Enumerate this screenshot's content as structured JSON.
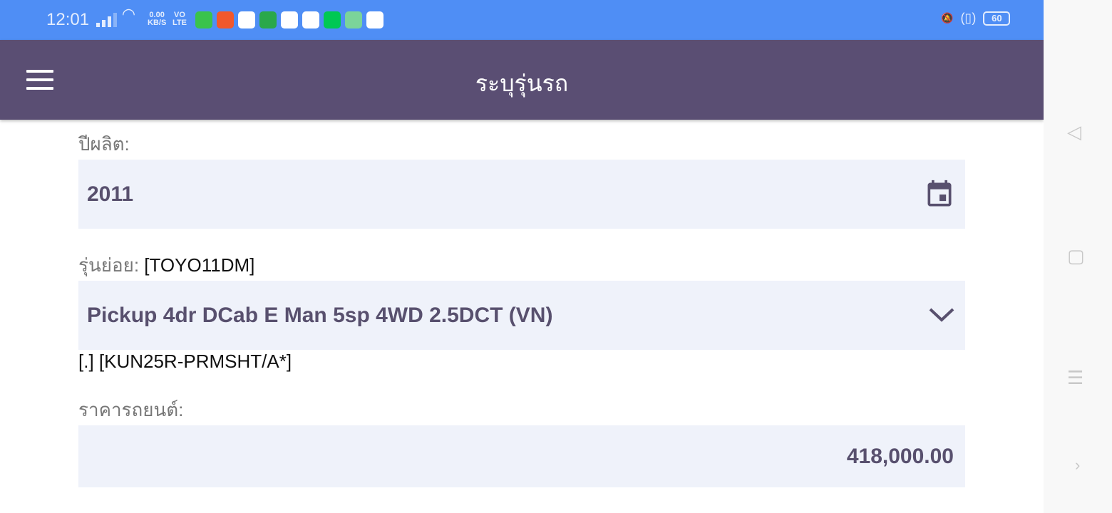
{
  "status_bar": {
    "time": "12:01",
    "net_speed": "0.00",
    "net_unit": "KB/S",
    "volte_top": "VO",
    "volte_bottom": "LTE",
    "battery": "60",
    "app_icons": [
      {
        "name": "line",
        "color": "#3ac34c"
      },
      {
        "name": "shopee",
        "color": "#f1582c"
      },
      {
        "name": "browser",
        "color": "#ffffff"
      },
      {
        "name": "store",
        "color": "#2aa84a"
      },
      {
        "name": "photos",
        "color": "#ffffff"
      },
      {
        "name": "chrome",
        "color": "#ffffff"
      },
      {
        "name": "iqiyi",
        "color": "#00c853"
      },
      {
        "name": "planet",
        "color": "#7bd49a"
      },
      {
        "name": "youtube",
        "color": "#ffffff"
      }
    ]
  },
  "app_bar": {
    "title": "ระบุรุ่นรถ",
    "color": "#5a4e73"
  },
  "form": {
    "year_label": "ปีผลิต:",
    "year_value": "2011",
    "submodel_label": "รุ่นย่อย:",
    "submodel_code": "[TOYO11DM]",
    "submodel_value": "Pickup 4dr DCab E Man 5sp 4WD 2.5DCT (VN)",
    "submodel_note": "[.] [KUN25R-PRMSHT/A*]",
    "price_label": "ราคารถยนต์:",
    "price_value": "418,000.00"
  }
}
